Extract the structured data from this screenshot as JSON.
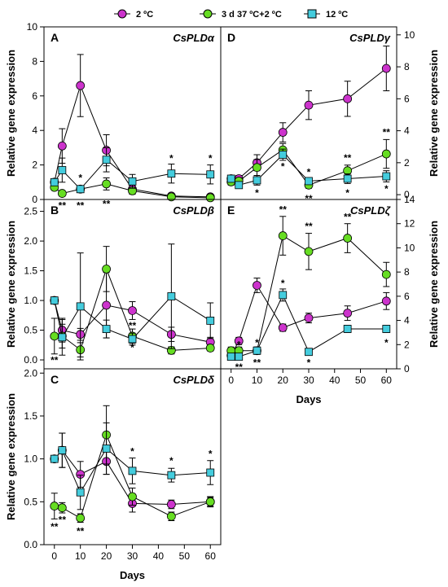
{
  "colors": {
    "s1": "#cc33cc",
    "s2": "#66dd22",
    "s3": "#44ccdd",
    "line": "#000000"
  },
  "legend": [
    "2 ºC",
    "3 d 37 ºC+2 ºC",
    "12 ºC"
  ],
  "chart_data": [
    {
      "type": "line",
      "panel": "A",
      "gene": "CsPLDα",
      "xlabel": "",
      "ylabel": "Relative gene expression",
      "ylim": [
        0,
        10
      ],
      "yticks": [
        0,
        2,
        4,
        6,
        8,
        10
      ],
      "xticks": [],
      "series": [
        {
          "name": "2 ºC",
          "x": [
            0,
            3,
            10,
            20,
            30,
            45,
            60
          ],
          "y": [
            1.0,
            3.1,
            6.6,
            2.85,
            0.6,
            0.2,
            0.15
          ],
          "err": [
            0,
            1.0,
            1.8,
            0.9,
            0.2,
            0.1,
            0.1
          ]
        },
        {
          "name": "3 d 37 ºC+2 ºC",
          "x": [
            0,
            3,
            10,
            20,
            30,
            45,
            60
          ],
          "y": [
            0.7,
            0.35,
            0.6,
            0.9,
            0.5,
            0.15,
            0.1
          ],
          "err": [
            0,
            0.15,
            0.2,
            0.35,
            0.2,
            0.1,
            0.05
          ]
        },
        {
          "name": "12 ºC",
          "x": [
            0,
            3,
            10,
            20,
            30,
            45,
            60
          ],
          "y": [
            1.0,
            1.7,
            0.6,
            2.3,
            1.05,
            1.5,
            1.45
          ],
          "err": [
            0,
            0.7,
            0.2,
            0.7,
            0.4,
            0.55,
            0.55
          ]
        }
      ],
      "annotations": [
        {
          "x": 3,
          "y": -0.55,
          "text": "**"
        },
        {
          "x": 10,
          "y": 1.05,
          "text": "*"
        },
        {
          "x": 10,
          "y": -0.55,
          "text": "**"
        },
        {
          "x": 20,
          "y": -0.45,
          "text": "**"
        },
        {
          "x": 45,
          "y": 2.2,
          "text": "*"
        },
        {
          "x": 60,
          "y": 2.2,
          "text": "*"
        }
      ]
    },
    {
      "type": "line",
      "panel": "B",
      "gene": "CsPLDβ",
      "xlabel": "",
      "ylabel": "Relative gene expression",
      "ylim": [
        -0.15,
        2.7
      ],
      "yticks": [
        0.0,
        0.5,
        1.0,
        1.5,
        2.0,
        2.5
      ],
      "xticks": [],
      "series": [
        {
          "name": "2 ºC",
          "x": [
            0,
            3,
            10,
            20,
            30,
            45,
            60
          ],
          "y": [
            1.0,
            0.5,
            0.43,
            0.92,
            0.83,
            0.43,
            0.3
          ],
          "err": [
            0,
            0.2,
            0.1,
            0.55,
            0.15,
            0.12,
            0.08
          ]
        },
        {
          "name": "3 d 37 ºC+2 ºC",
          "x": [
            0,
            3,
            10,
            20,
            30,
            45,
            60
          ],
          "y": [
            0.4,
            0.4,
            0.17,
            1.53,
            0.4,
            0.16,
            0.2
          ],
          "err": [
            0.3,
            0.2,
            0.12,
            0.38,
            0.12,
            0.06,
            0.05
          ]
        },
        {
          "name": "12 ºC",
          "x": [
            0,
            3,
            10,
            20,
            30,
            45,
            60
          ],
          "y": [
            1.0,
            0.38,
            0.9,
            0.52,
            0.35,
            1.07,
            0.66
          ],
          "err": [
            0,
            0.3,
            0.9,
            0.15,
            0.1,
            0.88,
            0.3
          ]
        }
      ],
      "annotations": [
        {
          "x": 0,
          "y": -0.06,
          "text": "**"
        },
        {
          "x": 30,
          "y": 0.52,
          "text": "**"
        },
        {
          "x": 30,
          "y": 0.15,
          "text": "*"
        }
      ]
    },
    {
      "type": "line",
      "panel": "C",
      "gene": "CsPLDδ",
      "xlabel": "Days",
      "ylabel": "Relative gene expression",
      "ylim": [
        0,
        2.05
      ],
      "yticks": [
        0.0,
        0.5,
        1.0,
        1.5,
        2.0
      ],
      "xticks": [
        0,
        10,
        20,
        30,
        40,
        50,
        60
      ],
      "series": [
        {
          "name": "2 ºC",
          "x": [
            0,
            3,
            10,
            20,
            30,
            45,
            60
          ],
          "y": [
            1.0,
            1.1,
            0.82,
            0.97,
            0.48,
            0.47,
            0.5
          ],
          "err": [
            0,
            0.2,
            0.15,
            0.15,
            0.1,
            0.05,
            0.05
          ]
        },
        {
          "name": "3 d 37 ºC+2 ºC",
          "x": [
            0,
            3,
            10,
            20,
            30,
            45,
            60
          ],
          "y": [
            0.45,
            0.43,
            0.31,
            1.28,
            0.56,
            0.33,
            0.5
          ],
          "err": [
            0.15,
            0.06,
            0.05,
            0.34,
            0.1,
            0.05,
            0.06
          ]
        },
        {
          "name": "12 ºC",
          "x": [
            0,
            3,
            10,
            20,
            30,
            45,
            60
          ],
          "y": [
            1.0,
            1.1,
            0.61,
            1.12,
            0.86,
            0.81,
            0.84
          ],
          "err": [
            0,
            0.2,
            0.2,
            0.3,
            0.15,
            0.08,
            0.14
          ]
        }
      ],
      "annotations": [
        {
          "x": 0,
          "y": 0.17,
          "text": "**"
        },
        {
          "x": 3,
          "y": 0.25,
          "text": "**"
        },
        {
          "x": 10,
          "y": 0.12,
          "text": "**"
        },
        {
          "x": 30,
          "y": 1.05,
          "text": "*"
        },
        {
          "x": 45,
          "y": 0.94,
          "text": "*"
        },
        {
          "x": 60,
          "y": 1.02,
          "text": "*"
        }
      ]
    },
    {
      "type": "line",
      "panel": "D",
      "gene": "CsPLDγ",
      "xlabel": "",
      "ylabel": "Relative gene expression",
      "ylim": [
        -0.3,
        10.5
      ],
      "yticks": [
        0,
        2,
        4,
        6,
        8,
        10
      ],
      "xticks": [],
      "series": [
        {
          "name": "2 ºC",
          "x": [
            0,
            3,
            10,
            20,
            30,
            45,
            60
          ],
          "y": [
            1.0,
            1.0,
            2.0,
            3.9,
            5.6,
            6.0,
            7.9
          ],
          "err": [
            0,
            0.2,
            0.5,
            0.6,
            0.9,
            1.1,
            1.4
          ]
        },
        {
          "name": "3 d 37 ºC+2 ºC",
          "x": [
            0,
            3,
            10,
            20,
            30,
            45,
            60
          ],
          "y": [
            0.8,
            0.85,
            1.7,
            2.8,
            0.6,
            1.5,
            2.55
          ],
          "err": [
            0.2,
            0.2,
            0.5,
            0.4,
            0.2,
            0.35,
            0.9
          ]
        },
        {
          "name": "12 ºC",
          "x": [
            0,
            3,
            10,
            20,
            30,
            45,
            60
          ],
          "y": [
            1.0,
            0.6,
            0.9,
            2.5,
            0.85,
            1.0,
            1.15
          ],
          "err": [
            0,
            0.2,
            0.3,
            0.35,
            0.15,
            0.3,
            0.35
          ]
        }
      ],
      "annotations": [
        {
          "x": 10,
          "y": -0.1,
          "text": "*"
        },
        {
          "x": 20,
          "y": 1.55,
          "text": "*"
        },
        {
          "x": 30,
          "y": 1.2,
          "text": "*"
        },
        {
          "x": 30,
          "y": -0.45,
          "text": "**"
        },
        {
          "x": 45,
          "y": 2.1,
          "text": "**"
        },
        {
          "x": 45,
          "y": -0.1,
          "text": "*"
        },
        {
          "x": 60,
          "y": 3.7,
          "text": "**"
        },
        {
          "x": 60,
          "y": 0.15,
          "text": "*"
        }
      ]
    },
    {
      "type": "line",
      "panel": "E",
      "gene": "CsPLDζ",
      "xlabel": "Days",
      "ylabel": "Relative gene expression",
      "ylim": [
        0,
        14
      ],
      "yticks": [
        0,
        2,
        4,
        6,
        8,
        10,
        12,
        14
      ],
      "xticks": [
        0,
        10,
        20,
        30,
        40,
        50,
        60
      ],
      "series": [
        {
          "name": "2 ºC",
          "x": [
            0,
            3,
            10,
            20,
            30,
            45,
            60
          ],
          "y": [
            1.1,
            2.3,
            6.9,
            3.4,
            4.2,
            4.6,
            5.6
          ],
          "err": [
            0.2,
            0.3,
            0.6,
            0.3,
            0.4,
            0.6,
            0.7
          ]
        },
        {
          "name": "3 d 37 ºC+2 ºC",
          "x": [
            0,
            3,
            10,
            20,
            30,
            45,
            60
          ],
          "y": [
            1.5,
            1.5,
            1.5,
            11.0,
            9.7,
            10.8,
            7.8
          ],
          "err": [
            0.3,
            0.3,
            0.3,
            1.6,
            1.5,
            1.2,
            1.0
          ]
        },
        {
          "name": "12 ºC",
          "x": [
            0,
            3,
            10,
            20,
            30,
            45,
            60
          ],
          "y": [
            1.0,
            1.0,
            1.5,
            6.1,
            1.4,
            3.3,
            3.3
          ],
          "err": [
            0.2,
            0.2,
            0.3,
            0.5,
            0.2,
            0.3,
            0.3
          ]
        }
      ],
      "annotations": [
        {
          "x": 3,
          "y": 1.7,
          "text": "*"
        },
        {
          "x": 3,
          "y": -0.15,
          "text": "**"
        },
        {
          "x": 10,
          "y": 1.9,
          "text": "*"
        },
        {
          "x": 10,
          "y": 0.25,
          "text": "**"
        },
        {
          "x": 20,
          "y": 12.9,
          "text": "**"
        },
        {
          "x": 20,
          "y": 6.8,
          "text": "*"
        },
        {
          "x": 30,
          "y": 11.5,
          "text": "**"
        },
        {
          "x": 30,
          "y": 0.25,
          "text": "*"
        },
        {
          "x": 45,
          "y": 12.3,
          "text": "**"
        },
        {
          "x": 60,
          "y": 1.9,
          "text": "*"
        }
      ]
    }
  ]
}
